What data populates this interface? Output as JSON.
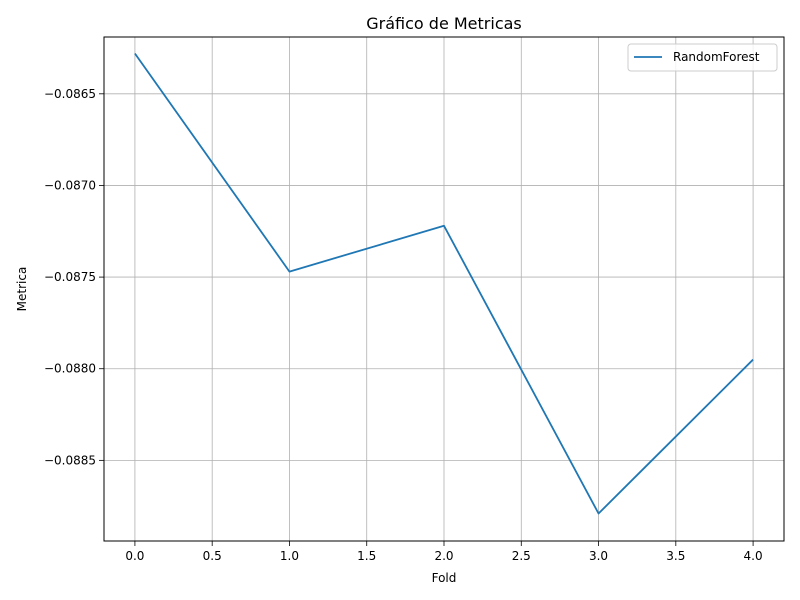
{
  "chart_data": {
    "type": "line",
    "title": "Gráfico de Metricas",
    "xlabel": "Fold",
    "ylabel": "Metrica",
    "x": [
      0,
      1,
      2,
      3,
      4
    ],
    "series": [
      {
        "name": "RandomForest",
        "color": "#1f77b4",
        "values": [
          -0.08628,
          -0.08747,
          -0.08722,
          -0.08879,
          -0.08795
        ]
      }
    ],
    "xlim": [
      -0.2,
      4.2
    ],
    "ylim": [
      -0.08894,
      -0.08619
    ],
    "xticks": [
      0.0,
      0.5,
      1.0,
      1.5,
      2.0,
      2.5,
      3.0,
      3.5,
      4.0
    ],
    "xtick_labels": [
      "0.0",
      "0.5",
      "1.0",
      "1.5",
      "2.0",
      "2.5",
      "3.0",
      "3.5",
      "4.0"
    ],
    "yticks": [
      -0.0865,
      -0.087,
      -0.0875,
      -0.088,
      -0.0885
    ],
    "ytick_labels": [
      "−0.0865",
      "−0.0870",
      "−0.0875",
      "−0.0880",
      "−0.0885"
    ],
    "grid": true,
    "legend_position": "top-right"
  }
}
